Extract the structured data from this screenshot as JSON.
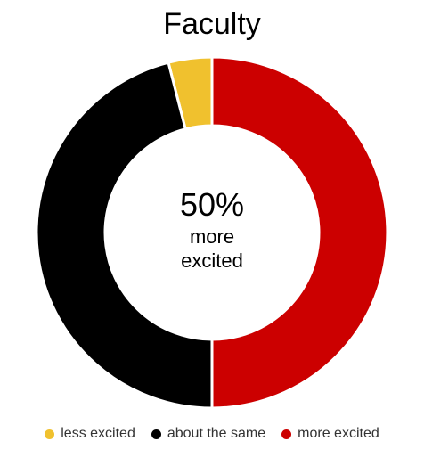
{
  "chart_data": {
    "type": "donut",
    "title": "Faculty",
    "categories": [
      "less excited",
      "about the same",
      "more excited"
    ],
    "values": [
      4,
      46,
      50
    ],
    "value_labels": [
      null,
      null,
      "50%"
    ],
    "colors": [
      "#f0c12e",
      "#000000",
      "#cc0000"
    ],
    "center_index": 2,
    "legend": "bottom"
  }
}
